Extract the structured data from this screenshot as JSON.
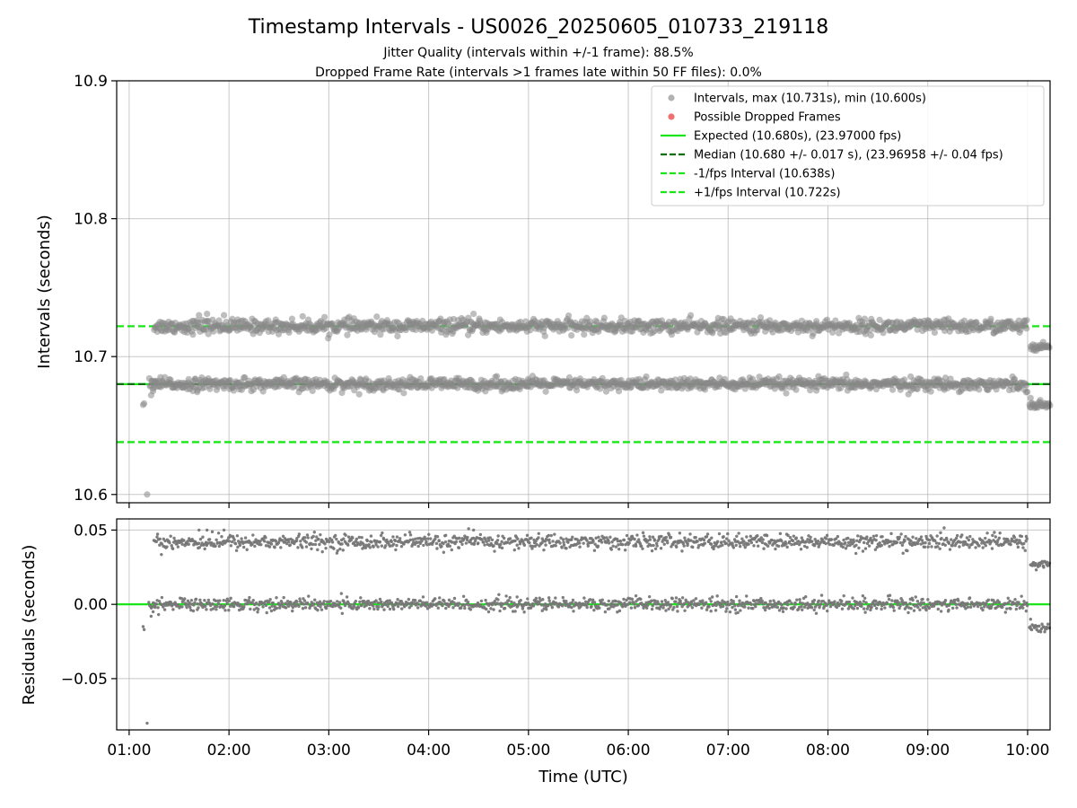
{
  "chart_data": {
    "type": "scatter",
    "title": "Timestamp Intervals - US0026_20250605_010733_219118",
    "subtitles": [
      "Jitter Quality (intervals within +/-1 frame): 88.5%",
      "Dropped Frame Rate (intervals >1 frames late within 50 FF files): 0.0%"
    ],
    "xlabel": "Time (UTC)",
    "x_range_hours": [
      0.875,
      10.225
    ],
    "x_ticks": [
      {
        "value": 1,
        "label": "01:00"
      },
      {
        "value": 2,
        "label": "02:00"
      },
      {
        "value": 3,
        "label": "03:00"
      },
      {
        "value": 4,
        "label": "04:00"
      },
      {
        "value": 5,
        "label": "05:00"
      },
      {
        "value": 6,
        "label": "06:00"
      },
      {
        "value": 7,
        "label": "07:00"
      },
      {
        "value": 8,
        "label": "08:00"
      },
      {
        "value": 9,
        "label": "09:00"
      },
      {
        "value": 10,
        "label": "10:00"
      }
    ],
    "grid": true,
    "top_panel": {
      "ylabel": "Intervals (seconds)",
      "ylim": [
        10.594,
        10.9
      ],
      "y_ticks": [
        {
          "value": 10.6,
          "label": "10.6"
        },
        {
          "value": 10.7,
          "label": "10.7"
        },
        {
          "value": 10.8,
          "label": "10.8"
        },
        {
          "value": 10.9,
          "label": "10.9"
        }
      ],
      "legend_position": "top-right",
      "legend": [
        {
          "kind": "marker",
          "color": "#aaaaaa",
          "label": "Intervals, max (10.731s), min (10.600s)"
        },
        {
          "kind": "marker",
          "color": "#f06060",
          "label": "Possible Dropped Frames"
        },
        {
          "kind": "line-solid",
          "color": "#19e619",
          "label": "Expected (10.680s), (23.97000 fps)"
        },
        {
          "kind": "line-dashed",
          "color": "#0a6e0a",
          "label": "Median (10.680 +/- 0.017 s), (23.96958 +/- 0.04 fps)"
        },
        {
          "kind": "line-dashed",
          "color": "#19e619",
          "label": "-1/fps Interval (10.638s)"
        },
        {
          "kind": "line-dashed",
          "color": "#19e619",
          "label": "+1/fps Interval (10.722s)"
        }
      ],
      "reference_lines": [
        {
          "name": "Expected",
          "y": 10.68,
          "color": "#19e619",
          "style": "solid"
        },
        {
          "name": "Median",
          "y": 10.68,
          "color": "#0a6e0a",
          "style": "dashed"
        },
        {
          "name": "-1/fps Interval",
          "y": 10.638,
          "color": "#19e619",
          "style": "dashed"
        },
        {
          "name": "+1/fps Interval",
          "y": 10.722,
          "color": "#19e619",
          "style": "dashed"
        }
      ],
      "point_color": "#888888",
      "clusters": [
        {
          "x_start": 1.25,
          "x_end": 10.0,
          "center": 10.722,
          "spread": 0.0025
        },
        {
          "x_start": 1.2,
          "x_end": 10.0,
          "center": 10.68,
          "spread": 0.0022
        },
        {
          "x_start": 10.03,
          "x_end": 10.225,
          "center": 10.707,
          "spread": 0.0015
        },
        {
          "x_start": 10.02,
          "x_end": 10.225,
          "center": 10.665,
          "spread": 0.0012
        }
      ],
      "extra_points": [
        {
          "x": 1.18,
          "y": 10.6
        },
        {
          "x": 1.14,
          "y": 10.665
        },
        {
          "x": 1.15,
          "y": 10.666
        },
        {
          "x": 1.22,
          "y": 10.672
        },
        {
          "x": 1.24,
          "y": 10.675
        },
        {
          "x": 1.26,
          "y": 10.678
        },
        {
          "x": 1.7,
          "y": 10.73
        },
        {
          "x": 1.78,
          "y": 10.731
        },
        {
          "x": 1.95,
          "y": 10.73
        },
        {
          "x": 4.45,
          "y": 10.731
        },
        {
          "x": 10.03,
          "y": 10.67
        }
      ]
    },
    "bottom_panel": {
      "ylabel": "Residuals (seconds)",
      "ylim": [
        -0.0845,
        0.0575
      ],
      "y_ticks": [
        {
          "value": 0.05,
          "label": "0.05"
        },
        {
          "value": 0.0,
          "label": "0.00"
        },
        {
          "value": -0.05,
          "label": "−0.05"
        }
      ],
      "reference_lines": [
        {
          "name": "Zero",
          "y": 0.0,
          "color": "#19e619",
          "style": "solid"
        }
      ],
      "point_color": "#777777",
      "clusters": [
        {
          "x_start": 1.25,
          "x_end": 10.0,
          "center": 0.042,
          "spread": 0.0025
        },
        {
          "x_start": 1.2,
          "x_end": 10.0,
          "center": 0.0,
          "spread": 0.0022
        },
        {
          "x_start": 10.03,
          "x_end": 10.225,
          "center": 0.027,
          "spread": 0.0015
        },
        {
          "x_start": 10.02,
          "x_end": 10.225,
          "center": -0.016,
          "spread": 0.0012
        }
      ],
      "extra_points": [
        {
          "x": 1.18,
          "y": -0.08
        },
        {
          "x": 1.14,
          "y": -0.015
        },
        {
          "x": 1.15,
          "y": -0.017
        },
        {
          "x": 1.22,
          "y": -0.008
        },
        {
          "x": 1.24,
          "y": -0.005
        },
        {
          "x": 1.26,
          "y": -0.002
        },
        {
          "x": 1.7,
          "y": 0.05
        },
        {
          "x": 1.78,
          "y": 0.05
        },
        {
          "x": 1.95,
          "y": 0.05
        },
        {
          "x": 4.45,
          "y": 0.05
        },
        {
          "x": 10.03,
          "y": -0.01
        }
      ]
    }
  }
}
